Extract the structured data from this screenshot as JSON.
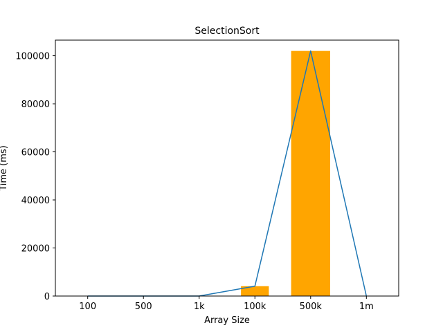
{
  "chart_data": {
    "type": "bar",
    "title": "SelectionSort",
    "xlabel": "Array Size",
    "ylabel": "Time (ms)",
    "categories": [
      "100",
      "500",
      "1k",
      "100k",
      "500k",
      "1m"
    ],
    "ylim": [
      0,
      106500
    ],
    "yticks": [
      0,
      20000,
      40000,
      60000,
      80000,
      100000
    ],
    "grid": false,
    "bars": {
      "color": "#ffa500",
      "x": [
        3,
        4
      ],
      "values": [
        4100,
        102000
      ],
      "widths": [
        0.5,
        0.7
      ]
    },
    "line": {
      "color": "#1f77b4",
      "x": [
        0,
        1,
        2,
        3,
        4,
        5
      ],
      "values": [
        0,
        0,
        0,
        4100,
        102000,
        0
      ]
    }
  }
}
